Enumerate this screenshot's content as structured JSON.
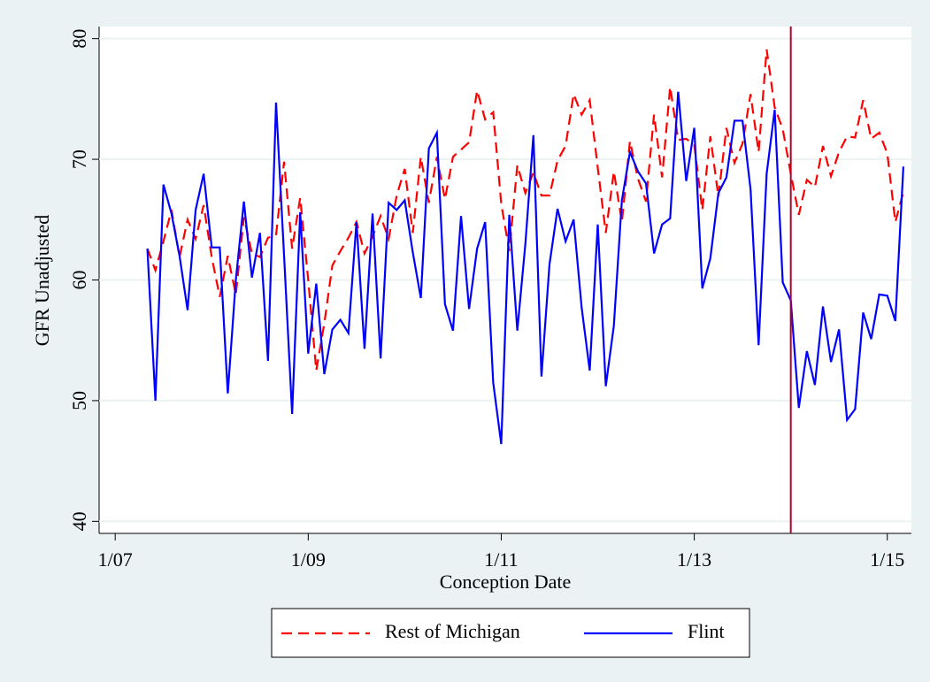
{
  "chart_data": {
    "type": "line",
    "x_label": "Conception Date",
    "y_label": "GFR Unadjusted",
    "x": [
      "5/07",
      "6/07",
      "7/07",
      "8/07",
      "9/07",
      "10/07",
      "11/07",
      "12/07",
      "1/08",
      "2/08",
      "3/08",
      "4/08",
      "5/08",
      "6/08",
      "7/08",
      "8/08",
      "9/08",
      "10/08",
      "11/08",
      "12/08",
      "1/09",
      "2/09",
      "3/09",
      "4/09",
      "5/09",
      "6/09",
      "7/09",
      "8/09",
      "9/09",
      "10/09",
      "11/09",
      "12/09",
      "1/10",
      "2/10",
      "3/10",
      "4/10",
      "5/10",
      "6/10",
      "7/10",
      "8/10",
      "9/10",
      "10/10",
      "11/10",
      "12/10",
      "1/11",
      "2/11",
      "3/11",
      "4/11",
      "5/11",
      "6/11",
      "7/11",
      "8/11",
      "9/11",
      "10/11",
      "11/11",
      "12/11",
      "1/12",
      "2/12",
      "3/12",
      "4/12",
      "5/12",
      "6/12",
      "7/12",
      "8/12",
      "9/12",
      "10/12",
      "11/12",
      "12/12",
      "1/13",
      "2/13",
      "3/13",
      "4/13",
      "5/13",
      "6/13",
      "7/13",
      "8/13",
      "9/13",
      "10/13",
      "11/13",
      "12/13",
      "1/14",
      "2/14",
      "3/14",
      "4/14",
      "5/14",
      "6/14",
      "7/14",
      "8/14",
      "9/14",
      "10/14",
      "11/14",
      "12/14",
      "1/15",
      "2/15",
      "3/15"
    ],
    "series": [
      {
        "name": "Rest of Michigan",
        "color": "#ff0000",
        "dash": true,
        "values": [
          62.6,
          60.8,
          63.2,
          65.8,
          61.9,
          65.0,
          63.4,
          66.2,
          61.9,
          58.6,
          62.0,
          58.8,
          65.2,
          62.2,
          61.9,
          63.5,
          63.7,
          69.8,
          62.6,
          66.8,
          60.0,
          52.5,
          56.4,
          61.2,
          62.4,
          63.5,
          64.8,
          62.2,
          63.6,
          65.3,
          63.4,
          67.0,
          69.2,
          63.9,
          70.2,
          66.4,
          70.2,
          66.7,
          70.2,
          70.8,
          71.4,
          75.7,
          73.3,
          73.9,
          66.3,
          62.4,
          69.5,
          67.2,
          68.9,
          67.0,
          67.0,
          69.9,
          71.1,
          75.4,
          73.7,
          74.9,
          69.3,
          63.9,
          69.0,
          64.8,
          71.5,
          68.4,
          66.5,
          73.7,
          68.5,
          76.0,
          71.6,
          71.7,
          71.2,
          65.8,
          71.9,
          66.9,
          72.6,
          69.7,
          71.3,
          75.4,
          70.6,
          79.1,
          74.3,
          72.5,
          68.8,
          65.4,
          68.3,
          67.7,
          71.1,
          68.6,
          70.6,
          71.9,
          71.8,
          74.9,
          71.7,
          72.2,
          70.5,
          64.8,
          67.3
        ]
      },
      {
        "name": "Flint",
        "color": "#0000ff",
        "dash": false,
        "values": [
          62.6,
          50.0,
          67.9,
          65.5,
          62.0,
          57.5,
          65.8,
          68.8,
          62.7,
          62.7,
          50.6,
          60.0,
          66.5,
          60.2,
          63.9,
          53.3,
          74.7,
          62.0,
          48.9,
          65.6,
          53.9,
          59.7,
          52.2,
          55.9,
          56.7,
          55.6,
          64.8,
          54.3,
          65.5,
          53.5,
          66.4,
          65.8,
          66.6,
          62.3,
          58.5,
          70.9,
          72.2,
          58.0,
          55.8,
          65.3,
          57.6,
          62.6,
          64.8,
          51.5,
          46.4,
          65.4,
          55.8,
          63.0,
          72.0,
          52.0,
          61.3,
          65.9,
          63.2,
          65.0,
          57.7,
          52.5,
          64.6,
          51.2,
          56.2,
          66.6,
          70.6,
          69.0,
          68.0,
          62.2,
          64.6,
          65.1,
          75.6,
          68.2,
          72.6,
          59.3,
          61.8,
          67.2,
          68.5,
          73.2,
          73.2,
          67.5,
          54.6,
          68.8,
          74.1,
          59.8,
          58.3,
          49.4,
          54.1,
          51.3,
          57.8,
          53.2,
          55.9,
          48.4,
          49.3,
          57.3,
          55.1,
          58.8,
          58.7,
          56.6,
          69.4
        ]
      }
    ],
    "xlim": [
      "11/06",
      "4/15"
    ],
    "xticks": [
      "1/07",
      "1/09",
      "1/11",
      "1/13",
      "1/15"
    ],
    "ylim": [
      39,
      81
    ],
    "yticks": [
      40,
      50,
      60,
      70,
      80
    ],
    "grid": true,
    "vline": "1/14",
    "vline_color": "#b0002a",
    "legend": "bottom"
  }
}
